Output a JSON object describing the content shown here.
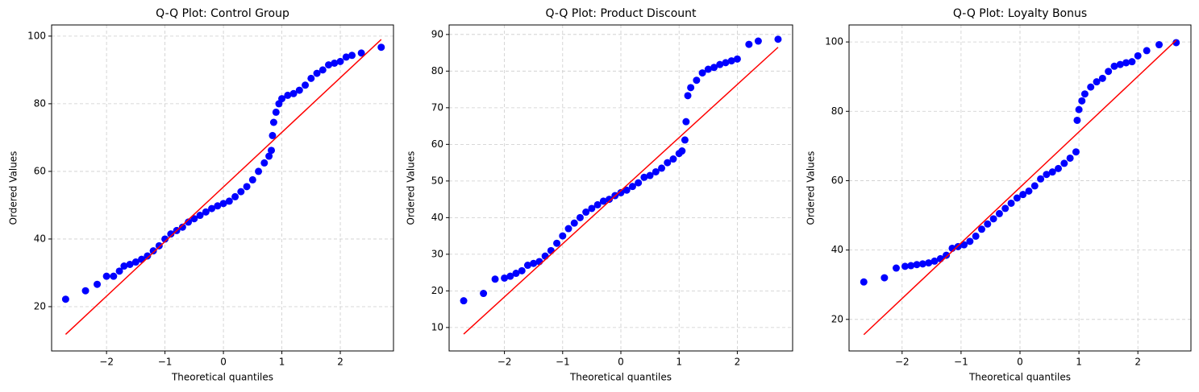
{
  "chart_data": [
    {
      "type": "scatter",
      "title": "Q-Q Plot: Control Group",
      "x_label": "Theoretical quantiles",
      "y_label": "Ordered Values",
      "xlim": [
        -2.94,
        2.91
      ],
      "ylim": [
        6.9,
        103.3
      ],
      "xticks": [
        {
          "value": -2,
          "label": "−2"
        },
        {
          "value": -1,
          "label": "−1"
        },
        0,
        1,
        2
      ],
      "yticks": [
        20,
        40,
        60,
        80,
        100
      ],
      "grid": true,
      "points": {
        "color": "#0000ff",
        "x": [
          -2.7,
          -2.36,
          -2.16,
          -2.0,
          -1.88,
          -1.78,
          -1.7,
          -1.6,
          -1.5,
          -1.4,
          -1.3,
          -1.2,
          -1.1,
          -1.0,
          -0.9,
          -0.8,
          -0.7,
          -0.6,
          -0.5,
          -0.4,
          -0.3,
          -0.2,
          -0.1,
          0,
          0.1,
          0.2,
          0.3,
          0.4,
          0.5,
          0.6,
          0.7,
          0.78,
          0.82,
          0.84,
          0.86,
          0.9,
          0.95,
          1.0,
          1.1,
          1.2,
          1.3,
          1.4,
          1.5,
          1.6,
          1.7,
          1.8,
          1.9,
          2.0,
          2.1,
          2.2,
          2.36,
          2.7
        ],
        "y": [
          22.2,
          24.7,
          26.6,
          29,
          29,
          30.5,
          32,
          32.5,
          33.2,
          34,
          35,
          36.5,
          38,
          40,
          41.5,
          42.5,
          43.5,
          45,
          46,
          47,
          48,
          49,
          49.8,
          50.5,
          51.2,
          52.5,
          54,
          55.5,
          57.5,
          60,
          62.5,
          64.5,
          66.2,
          70.6,
          74.5,
          77.5,
          80,
          81.5,
          82.5,
          83,
          84,
          85.5,
          87.5,
          89,
          90,
          91.5,
          92,
          92.5,
          93.8,
          94.3,
          95,
          96.7
        ]
      },
      "fit_line": {
        "color": "#ff0000",
        "x": [
          -2.7,
          2.7
        ],
        "y": [
          11.8,
          99
        ]
      }
    },
    {
      "type": "scatter",
      "title": "Q-Q Plot: Product Discount",
      "x_label": "Theoretical quantiles",
      "y_label": "Ordered Values",
      "xlim": [
        -2.95,
        2.95
      ],
      "ylim": [
        3.6,
        92.6
      ],
      "xticks": [
        {
          "value": -2,
          "label": "−2"
        },
        {
          "value": -1,
          "label": "−1"
        },
        0,
        1,
        2
      ],
      "yticks": [
        10,
        20,
        30,
        40,
        50,
        60,
        70,
        80,
        90
      ],
      "grid": true,
      "points": {
        "color": "#0000ff",
        "x": [
          -2.7,
          -2.36,
          -2.16,
          -2.0,
          -1.9,
          -1.8,
          -1.7,
          -1.6,
          -1.5,
          -1.4,
          -1.3,
          -1.2,
          -1.1,
          -1.0,
          -0.9,
          -0.8,
          -0.7,
          -0.6,
          -0.5,
          -0.4,
          -0.3,
          -0.2,
          -0.1,
          0,
          0.1,
          0.2,
          0.3,
          0.4,
          0.5,
          0.6,
          0.7,
          0.8,
          0.9,
          1.0,
          1.05,
          1.1,
          1.12,
          1.15,
          1.2,
          1.3,
          1.4,
          1.5,
          1.6,
          1.7,
          1.8,
          1.9,
          2.0,
          2.2,
          2.36,
          2.7
        ],
        "y": [
          17.3,
          19.3,
          23.2,
          23.5,
          24,
          24.8,
          25.5,
          27,
          27.5,
          28,
          29.5,
          31,
          33,
          35,
          37,
          38.5,
          40,
          41.5,
          42.5,
          43.5,
          44.5,
          45,
          46,
          46.8,
          47.5,
          48.5,
          49.5,
          51,
          51.5,
          52.5,
          53.5,
          55,
          56,
          57.5,
          58.2,
          61.2,
          66.2,
          73.3,
          75.5,
          77.5,
          79.5,
          80.5,
          81,
          81.8,
          82.3,
          82.8,
          83.3,
          87.3,
          88.2,
          88.7
        ]
      },
      "fit_line": {
        "color": "#ff0000",
        "x": [
          -2.7,
          2.7
        ],
        "y": [
          8.2,
          86.5
        ]
      }
    },
    {
      "type": "scatter",
      "title": "Q-Q Plot: Loyalty Bonus",
      "x_label": "Theoretical quantiles",
      "y_label": "Ordered Values",
      "xlim": [
        -2.9,
        2.9
      ],
      "ylim": [
        10.9,
        104.9
      ],
      "xticks": [
        {
          "value": -2,
          "label": "−2"
        },
        {
          "value": -1,
          "label": "−1"
        },
        0,
        1,
        2
      ],
      "yticks": [
        20,
        40,
        60,
        80,
        100
      ],
      "grid": true,
      "points": {
        "color": "#0000ff",
        "x": [
          -2.65,
          -2.3,
          -2.1,
          -1.95,
          -1.85,
          -1.75,
          -1.65,
          -1.55,
          -1.45,
          -1.35,
          -1.25,
          -1.15,
          -1.05,
          -0.95,
          -0.85,
          -0.75,
          -0.65,
          -0.55,
          -0.45,
          -0.35,
          -0.25,
          -0.15,
          -0.05,
          0.05,
          0.15,
          0.25,
          0.35,
          0.45,
          0.55,
          0.65,
          0.75,
          0.85,
          0.95,
          0.97,
          1.0,
          1.05,
          1.1,
          1.2,
          1.3,
          1.4,
          1.5,
          1.6,
          1.7,
          1.8,
          1.9,
          2.0,
          2.15,
          2.36,
          2.65
        ],
        "y": [
          30.8,
          32,
          34.8,
          35.3,
          35.5,
          35.8,
          36,
          36.3,
          36.8,
          37.5,
          38.5,
          40.5,
          41,
          41.5,
          42.5,
          44,
          46,
          47.5,
          49,
          50.5,
          52,
          53.5,
          55,
          56,
          57,
          58.5,
          60.5,
          61.8,
          62.5,
          63.5,
          65,
          66.5,
          68.3,
          77.4,
          80.5,
          83,
          85,
          87,
          88.5,
          89.5,
          91.5,
          93,
          93.5,
          94,
          94.3,
          96,
          97.5,
          99.2,
          99.8
        ]
      },
      "fit_line": {
        "color": "#ff0000",
        "x": [
          -2.65,
          2.65
        ],
        "y": [
          15.6,
          100.5
        ]
      }
    }
  ]
}
